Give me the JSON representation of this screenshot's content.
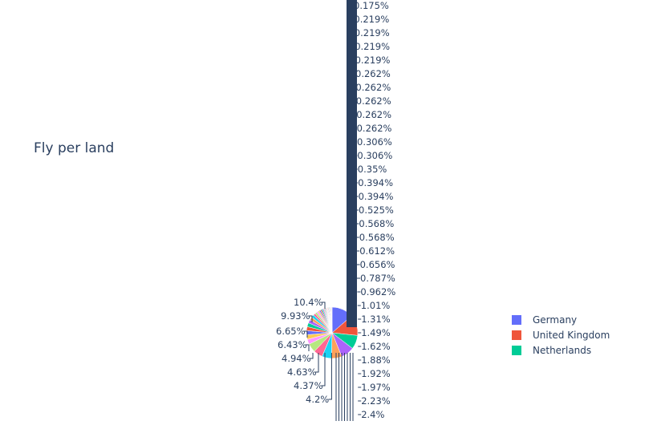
{
  "chart_data": {
    "type": "pie",
    "title": "Fly per land",
    "legend_position": "right",
    "legend_entries": [
      {
        "name": "Germany",
        "color": "#636efa"
      },
      {
        "name": "United Kingdom",
        "color": "#ef553b"
      },
      {
        "name": "Netherlands",
        "color": "#00cc96"
      }
    ],
    "slice_colors": [
      "#636efa",
      "#ef553b",
      "#00cc96",
      "#ab63fa",
      "#ffa15a",
      "#19d3f3",
      "#ff6692",
      "#b6e880",
      "#ff97ff",
      "#fecb52"
    ],
    "left_labels": [
      "10.4%",
      "9.93%",
      "6.65%",
      "6.43%",
      "4.94%",
      "4.63%",
      "4.37%",
      "4.2%"
    ],
    "right_labels": [
      "0.175%",
      "0.219%",
      "0.219%",
      "0.219%",
      "0.219%",
      "0.262%",
      "0.262%",
      "0.262%",
      "0.262%",
      "0.262%",
      "0.306%",
      "0.306%",
      "0.35%",
      "0.394%",
      "0.394%",
      "0.525%",
      "0.568%",
      "0.568%",
      "0.612%",
      "0.656%",
      "0.787%",
      "0.962%",
      "1.01%",
      "1.31%",
      "1.49%",
      "1.62%",
      "1.88%",
      "1.92%",
      "1.97%",
      "2.23%",
      "2.4%"
    ],
    "values": [
      10.4,
      9.93,
      6.65,
      6.43,
      4.94,
      4.63,
      4.37,
      4.2,
      2.4,
      2.23,
      1.97,
      1.92,
      1.88,
      1.62,
      1.49,
      1.31,
      1.01,
      0.962,
      0.787,
      0.656,
      0.612,
      0.568,
      0.568,
      0.525,
      0.394,
      0.394,
      0.35,
      0.306,
      0.306,
      0.262,
      0.262,
      0.262,
      0.262,
      0.262,
      0.219,
      0.219,
      0.219,
      0.219,
      0.175
    ]
  }
}
